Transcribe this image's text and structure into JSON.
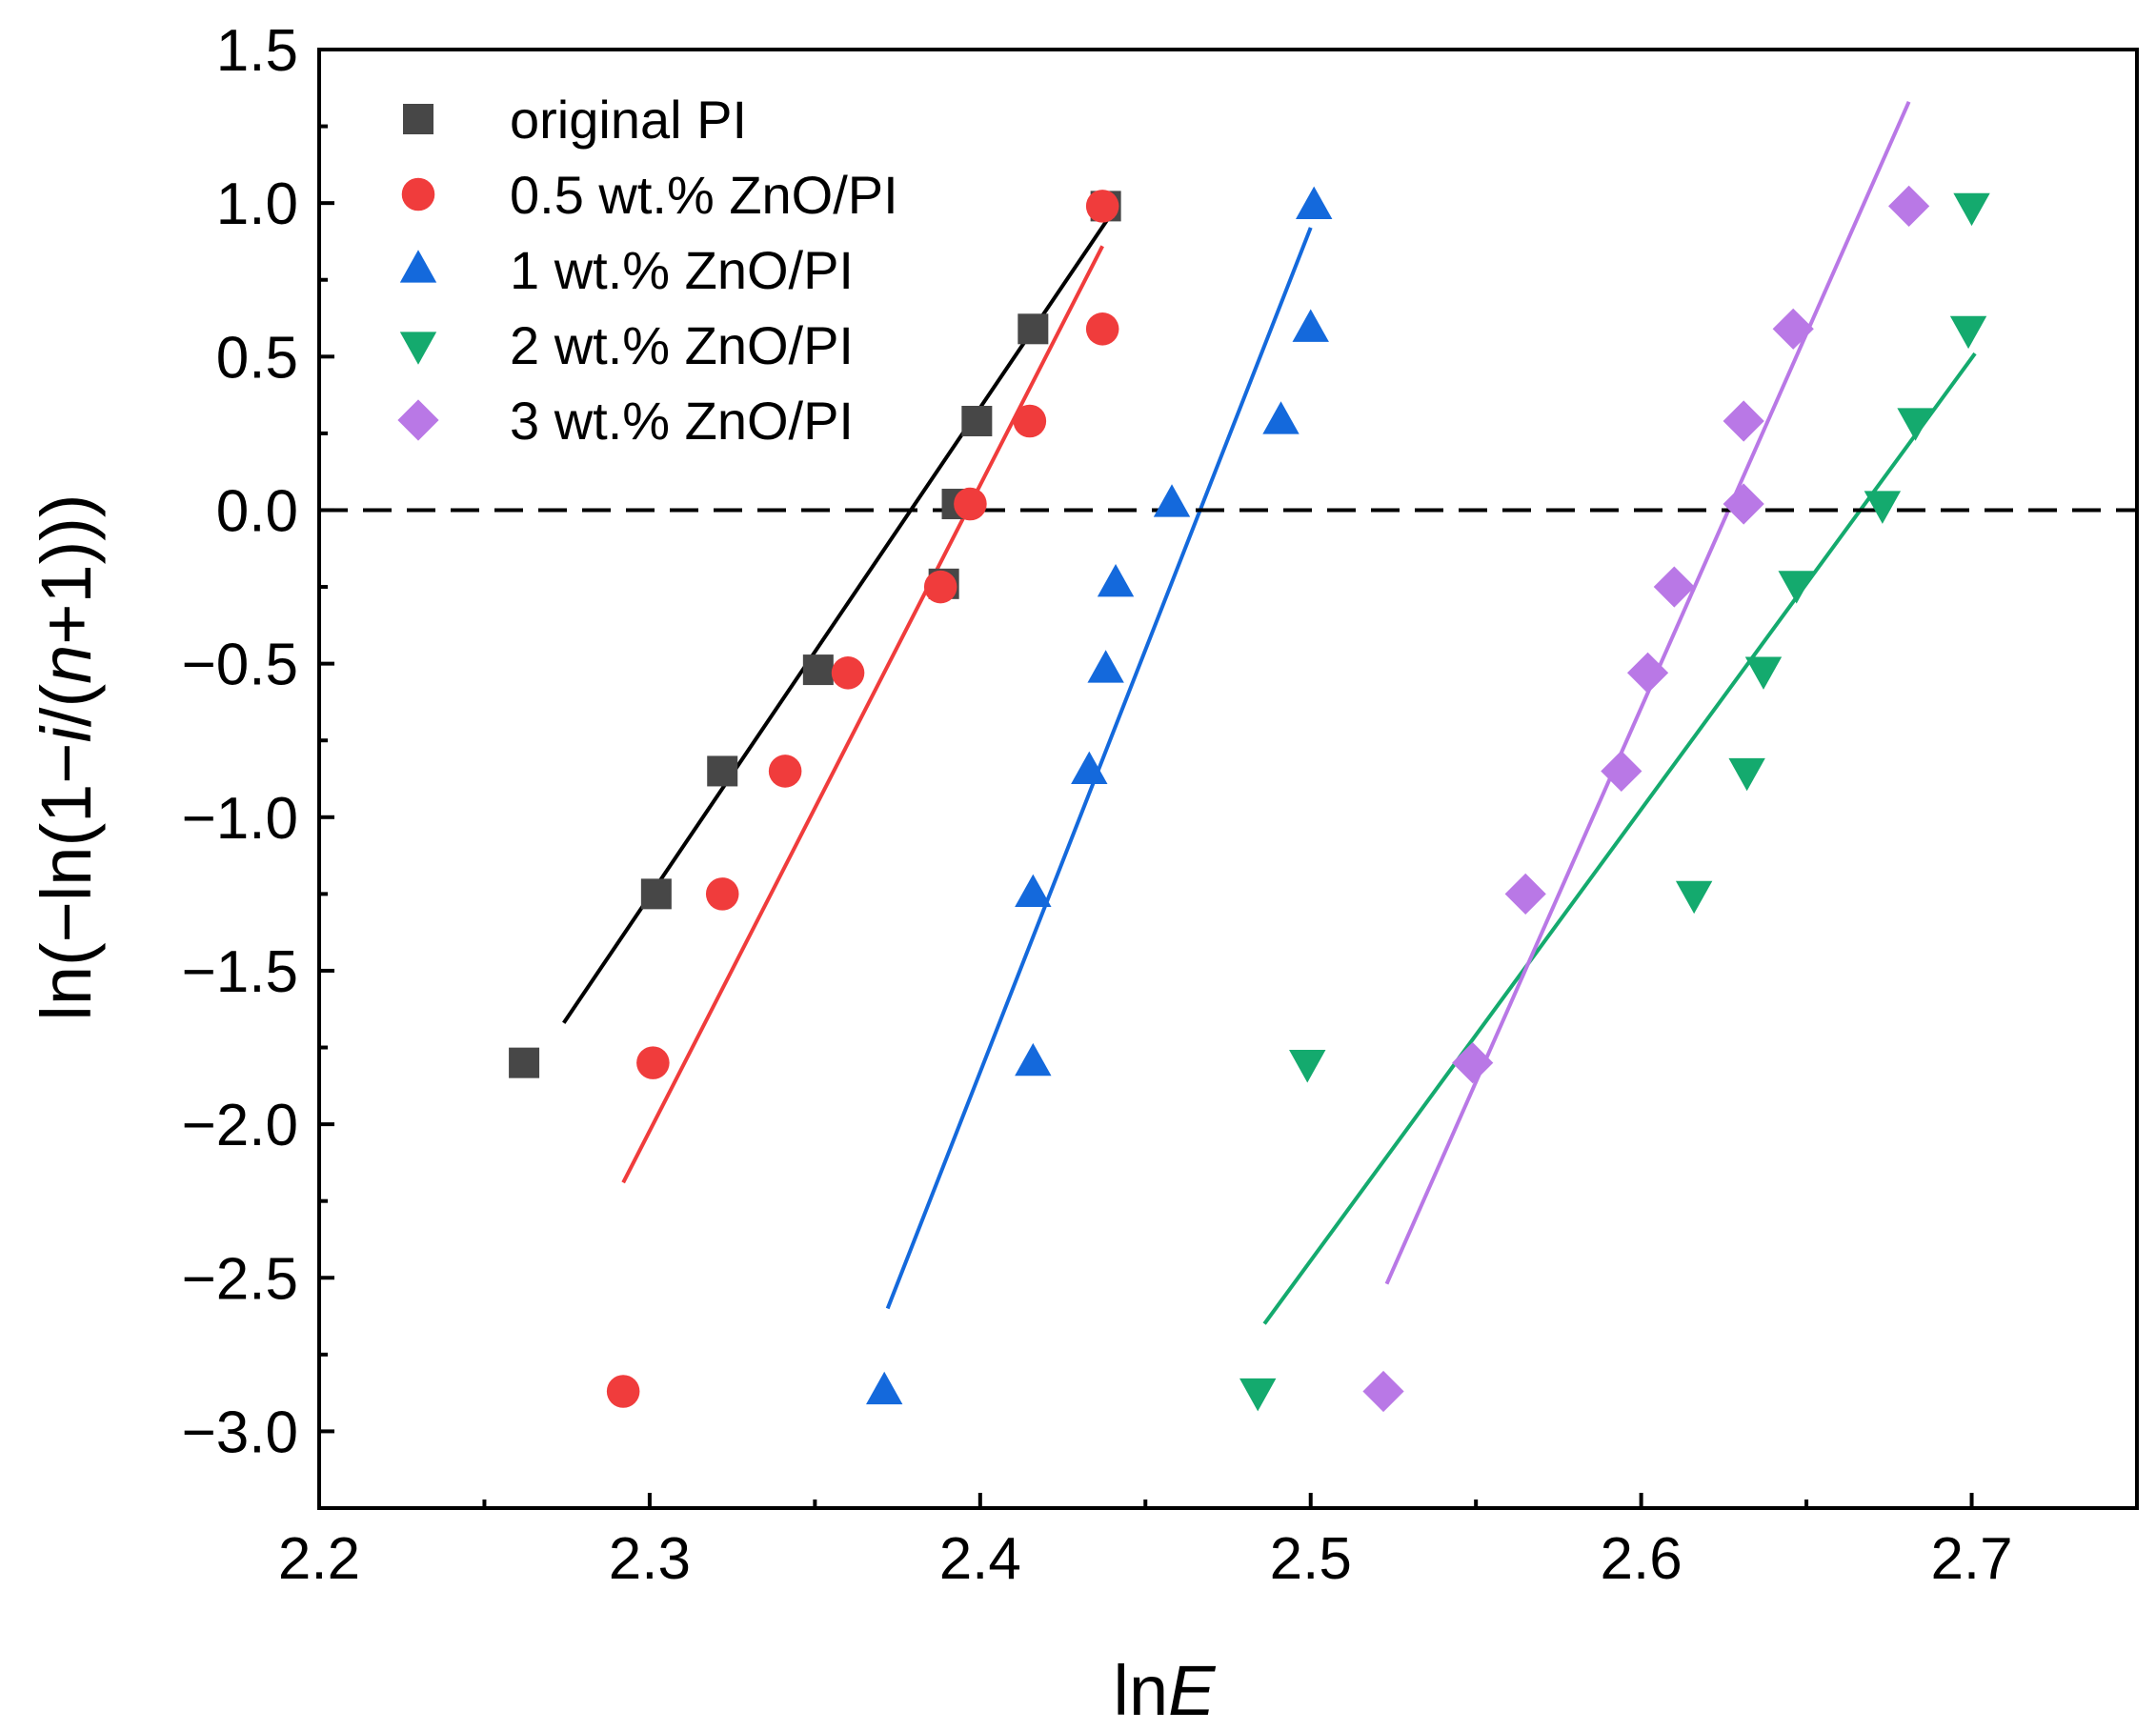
{
  "chart_data": {
    "type": "scatter",
    "xlabel_prefix": "ln",
    "xlabel_italic": "E",
    "ylabel_parts": {
      "before_i": "ln(−ln(1−",
      "i": "i",
      "between": "/(",
      "n": "n",
      "after_n": "+1)))"
    },
    "xlim": [
      2.2,
      2.75
    ],
    "ylim": [
      -3.25,
      1.5
    ],
    "xticks": [
      2.2,
      2.3,
      2.4,
      2.5,
      2.6,
      2.7
    ],
    "xtick_labels": [
      "2.2",
      "2.3",
      "2.4",
      "2.5",
      "2.6",
      "2.7"
    ],
    "yticks": [
      1.5,
      1.0,
      0.5,
      0.0,
      -0.5,
      -1.0,
      -1.5,
      -2.0,
      -2.5,
      -3.0
    ],
    "ytick_labels": [
      "1.5",
      "1.0",
      "0.5",
      "0.0",
      "−0.5",
      "−1.0",
      "−1.5",
      "−2.0",
      "−2.5",
      "−3.0"
    ],
    "reference_line_y": 0.0,
    "legend_position": "top-left",
    "series": [
      {
        "name": "original PI",
        "marker": "square",
        "color": "#474747",
        "line_color": "#000000",
        "points": [
          [
            2.262,
            -1.8
          ],
          [
            2.302,
            -1.25
          ],
          [
            2.322,
            -0.85
          ],
          [
            2.351,
            -0.52
          ],
          [
            2.389,
            -0.24
          ],
          [
            2.393,
            0.02
          ],
          [
            2.399,
            0.29
          ],
          [
            2.416,
            0.59
          ],
          [
            2.438,
            0.99
          ]
        ],
        "fit": [
          [
            2.274,
            -1.67
          ],
          [
            2.44,
            0.97
          ]
        ]
      },
      {
        "name": "0.5 wt.% ZnO/PI",
        "marker": "circle",
        "color": "#f03c3c",
        "line_color": "#f03c3c",
        "points": [
          [
            2.292,
            -2.87
          ],
          [
            2.301,
            -1.8
          ],
          [
            2.322,
            -1.25
          ],
          [
            2.341,
            -0.85
          ],
          [
            2.36,
            -0.53
          ],
          [
            2.388,
            -0.25
          ],
          [
            2.397,
            0.02
          ],
          [
            2.415,
            0.29
          ],
          [
            2.437,
            0.59
          ],
          [
            2.437,
            0.99
          ]
        ],
        "fit": [
          [
            2.292,
            -2.19
          ],
          [
            2.437,
            0.86
          ]
        ]
      },
      {
        "name": "1 wt.% ZnO/PI",
        "marker": "triangle-up",
        "color": "#1469dc",
        "line_color": "#1469dc",
        "points": [
          [
            2.371,
            -2.87
          ],
          [
            2.416,
            -1.8
          ],
          [
            2.416,
            -1.25
          ],
          [
            2.433,
            -0.85
          ],
          [
            2.438,
            -0.52
          ],
          [
            2.441,
            -0.24
          ],
          [
            2.458,
            0.02
          ],
          [
            2.491,
            0.29
          ],
          [
            2.5,
            0.59
          ],
          [
            2.501,
            0.99
          ]
        ],
        "fit": [
          [
            2.372,
            -2.6
          ],
          [
            2.5,
            0.92
          ]
        ]
      },
      {
        "name": "2 wt.% ZnO/PI",
        "marker": "triangle-down",
        "color": "#14aa6e",
        "line_color": "#14aa6e",
        "points": [
          [
            2.484,
            -2.87
          ],
          [
            2.499,
            -1.8
          ],
          [
            2.616,
            -1.25
          ],
          [
            2.632,
            -0.85
          ],
          [
            2.637,
            -0.52
          ],
          [
            2.647,
            -0.24
          ],
          [
            2.673,
            0.02
          ],
          [
            2.683,
            0.29
          ],
          [
            2.699,
            0.59
          ],
          [
            2.7,
            0.99
          ]
        ],
        "fit": [
          [
            2.486,
            -2.65
          ],
          [
            2.701,
            0.51
          ]
        ]
      },
      {
        "name": "3 wt.% ZnO/PI",
        "marker": "diamond",
        "color": "#b978e6",
        "line_color": "#b978e6",
        "points": [
          [
            2.522,
            -2.87
          ],
          [
            2.549,
            -1.8
          ],
          [
            2.565,
            -1.25
          ],
          [
            2.594,
            -0.85
          ],
          [
            2.602,
            -0.53
          ],
          [
            2.61,
            -0.25
          ],
          [
            2.631,
            0.02
          ],
          [
            2.631,
            0.29
          ],
          [
            2.646,
            0.59
          ],
          [
            2.681,
            0.99
          ]
        ],
        "fit": [
          [
            2.523,
            -2.52
          ],
          [
            2.681,
            1.33
          ]
        ]
      }
    ]
  }
}
